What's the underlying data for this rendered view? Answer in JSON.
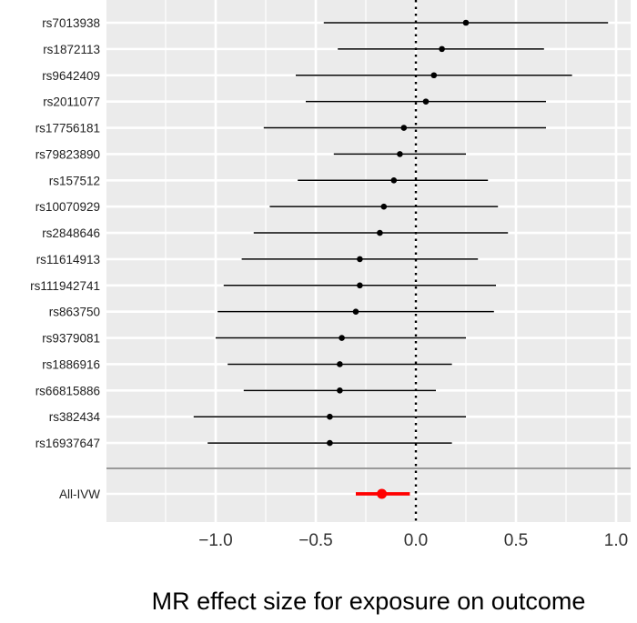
{
  "chart_data": {
    "type": "forest",
    "xlabel": "MR effect size for exposure on outcome",
    "ylabel": "",
    "xlim": [
      -1.55,
      1.05
    ],
    "x_ticks": [
      -1.0,
      -0.5,
      0.0,
      0.5,
      1.0
    ],
    "x_tick_labels": [
      "−1.0",
      "−0.5",
      "0.0",
      "0.5",
      "1.0"
    ],
    "grid": true,
    "reference_line": {
      "x": 0,
      "style": "dotted"
    },
    "snps": [
      {
        "name": "rs7013938",
        "estimate": 0.25,
        "lower": -0.46,
        "upper": 0.96
      },
      {
        "name": "rs1872113",
        "estimate": 0.13,
        "lower": -0.39,
        "upper": 0.64
      },
      {
        "name": "rs9642409",
        "estimate": 0.09,
        "lower": -0.6,
        "upper": 0.78
      },
      {
        "name": "rs2011077",
        "estimate": 0.05,
        "lower": -0.55,
        "upper": 0.65
      },
      {
        "name": "rs17756181",
        "estimate": -0.06,
        "lower": -0.76,
        "upper": 0.65
      },
      {
        "name": "rs79823890",
        "estimate": -0.08,
        "lower": -0.41,
        "upper": 0.25
      },
      {
        "name": "rs157512",
        "estimate": -0.11,
        "lower": -0.59,
        "upper": 0.36
      },
      {
        "name": "rs10070929",
        "estimate": -0.16,
        "lower": -0.73,
        "upper": 0.41
      },
      {
        "name": "rs2848646",
        "estimate": -0.18,
        "lower": -0.81,
        "upper": 0.46
      },
      {
        "name": "rs11614913",
        "estimate": -0.28,
        "lower": -0.87,
        "upper": 0.31
      },
      {
        "name": "rs111942741",
        "estimate": -0.28,
        "lower": -0.96,
        "upper": 0.4
      },
      {
        "name": "rs863750",
        "estimate": -0.3,
        "lower": -0.99,
        "upper": 0.39
      },
      {
        "name": "rs9379081",
        "estimate": -0.37,
        "lower": -1.0,
        "upper": 0.25
      },
      {
        "name": "rs1886916",
        "estimate": -0.38,
        "lower": -0.94,
        "upper": 0.18
      },
      {
        "name": "rs66815886",
        "estimate": -0.38,
        "lower": -0.86,
        "upper": 0.1
      },
      {
        "name": "rs382434",
        "estimate": -0.43,
        "lower": -1.11,
        "upper": 0.25
      },
      {
        "name": "rs16937647",
        "estimate": -0.43,
        "lower": -1.04,
        "upper": 0.18
      }
    ],
    "summary": {
      "name": "All-IVW",
      "estimate": -0.17,
      "lower": -0.3,
      "upper": -0.03,
      "color": "#ff0000"
    },
    "colors": {
      "panel": "#ebebeb",
      "grid": "#ffffff",
      "snp": "#000000",
      "separator": "#999999"
    }
  }
}
